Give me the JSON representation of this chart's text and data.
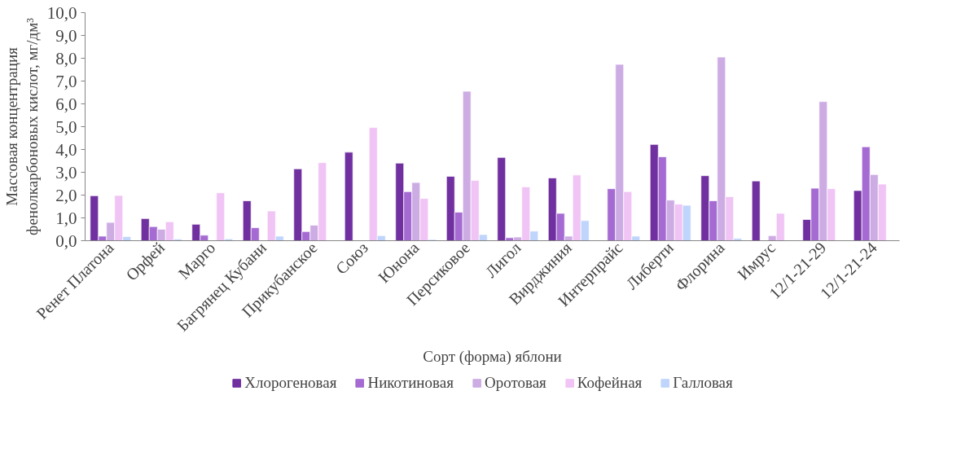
{
  "chart_data": {
    "type": "bar",
    "xlabel": "Сорт (форма) яблони",
    "ylabel": "Массовая концентрация\nфенолкарбоновых кислот, мг/дм³",
    "categories": [
      "Ренет Платона",
      "Орфей",
      "Марго",
      "Багрянец Кубани",
      "Прикубанское",
      "Союз",
      "Юнона",
      "Персиковое",
      "Лигол",
      "Вирджиния",
      "Интерпрайс",
      "Либерти",
      "Флорина",
      "Имрус",
      "12/1-21-29",
      "12/1-21-24"
    ],
    "series": [
      {
        "name": "Хлорогеновая",
        "color": "#7030a0",
        "values": [
          1.97,
          0.97,
          0.72,
          1.75,
          3.15,
          3.88,
          3.4,
          2.82,
          3.65,
          2.75,
          null,
          4.22,
          2.85,
          2.62,
          0.93,
          2.2
        ]
      },
      {
        "name": "Никотиновая",
        "color": "#a56bd2",
        "values": [
          0.2,
          0.62,
          0.24,
          0.57,
          0.4,
          null,
          2.15,
          1.25,
          0.13,
          1.2,
          2.28,
          3.68,
          1.75,
          null,
          2.3,
          4.12
        ]
      },
      {
        "name": "Оротовая",
        "color": "#cdace4",
        "values": [
          0.8,
          0.5,
          null,
          null,
          0.68,
          null,
          2.55,
          6.55,
          0.16,
          0.2,
          7.73,
          1.78,
          8.05,
          0.22,
          6.1,
          2.9
        ]
      },
      {
        "name": "Кофейная",
        "color": "#f0c4f4",
        "values": [
          1.98,
          0.83,
          2.1,
          1.3,
          3.42,
          4.96,
          1.85,
          2.64,
          2.36,
          2.88,
          2.15,
          1.6,
          1.93,
          1.2,
          2.28,
          2.48
        ]
      },
      {
        "name": "Галловая",
        "color": "#bfd5fb",
        "values": [
          0.18,
          0.07,
          0.08,
          0.2,
          null,
          0.22,
          0.05,
          0.27,
          0.42,
          0.88,
          0.2,
          1.55,
          0.1,
          null,
          null,
          null
        ]
      }
    ],
    "ylim": [
      0,
      10
    ],
    "yticks": [
      {
        "value": 0,
        "label": "0,0"
      },
      {
        "value": 1,
        "label": "1,0"
      },
      {
        "value": 2,
        "label": "2,0"
      },
      {
        "value": 3,
        "label": "3,0"
      },
      {
        "value": 4,
        "label": "4,0"
      },
      {
        "value": 5,
        "label": "5,0"
      },
      {
        "value": 6,
        "label": "6,0"
      },
      {
        "value": 7,
        "label": "7,0"
      },
      {
        "value": 8,
        "label": "8,0"
      },
      {
        "value": 9,
        "label": "9,0"
      },
      {
        "value": 10,
        "label": "10,0"
      }
    ],
    "grid": false,
    "legend": "bottom"
  }
}
